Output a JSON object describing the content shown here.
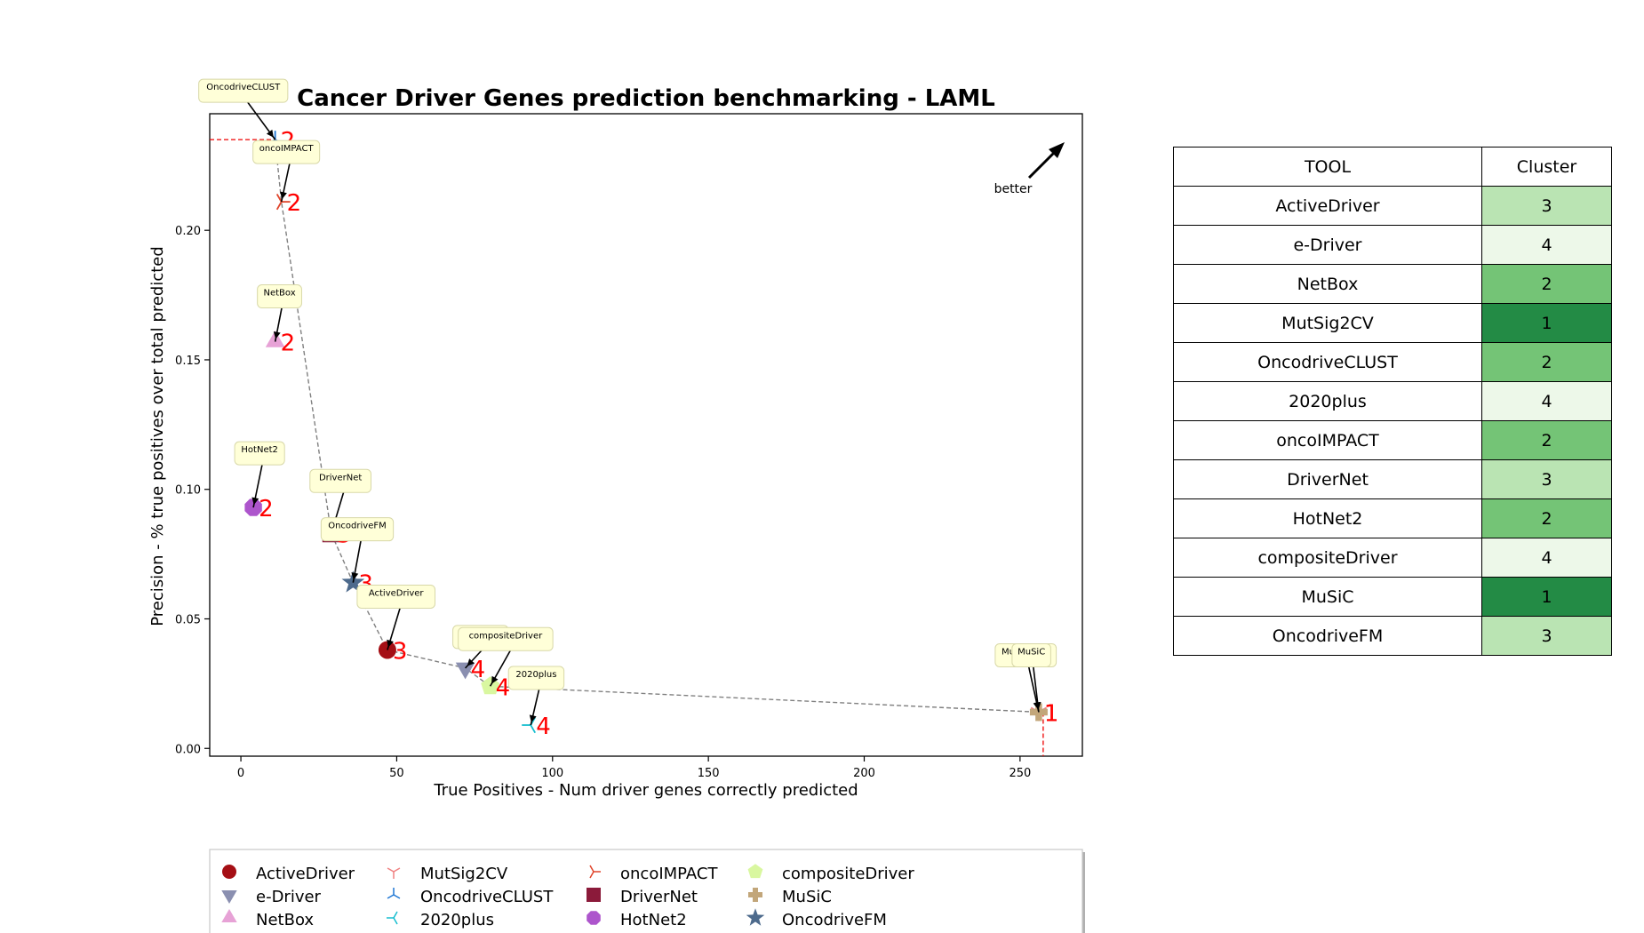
{
  "chart_data": {
    "type": "scatter",
    "title": "Cancer Driver Genes prediction benchmarking - LAML",
    "xlabel": "True Positives - Num driver genes correctly predicted",
    "ylabel": "Precision - % true positives over total predicted",
    "xlim": [
      -10,
      270
    ],
    "ylim": [
      -0.003,
      0.245
    ],
    "xticks": [
      0,
      50,
      100,
      150,
      200,
      250
    ],
    "xtick_labels": [
      "0",
      "50",
      "100",
      "150",
      "200",
      "250"
    ],
    "yticks": [
      0.0,
      0.05,
      0.1,
      0.15,
      0.2
    ],
    "ytick_labels": [
      "0.00",
      "0.05",
      "0.10",
      "0.15",
      "0.20"
    ],
    "grid": false,
    "better_label": "better",
    "series": [
      {
        "name": "ActiveDriver",
        "x": 47,
        "y": 0.038,
        "cluster": "3",
        "marker": "circle",
        "color": "#a50f15",
        "callout": "ActiveDriver"
      },
      {
        "name": "e-Driver",
        "x": 72,
        "y": 0.031,
        "cluster": "4",
        "marker": "triangle-down",
        "color": "#8a8fb0",
        "callout": "e-Driver"
      },
      {
        "name": "NetBox",
        "x": 11,
        "y": 0.157,
        "cluster": "2",
        "marker": "triangle-up",
        "color": "#e7a2d6",
        "callout": "NetBox"
      },
      {
        "name": "MutSig2CV",
        "x": 256,
        "y": 0.014,
        "cluster": "1",
        "marker": "tri-down",
        "color": "#f08080",
        "callout": "MutSig2CV"
      },
      {
        "name": "OncodriveCLUST",
        "x": 11,
        "y": 0.235,
        "cluster": "2",
        "marker": "tri-up",
        "color": "#1f77d4",
        "callout": "OncodriveCLUST"
      },
      {
        "name": "2020plus",
        "x": 93,
        "y": 0.009,
        "cluster": "4",
        "marker": "tri-left",
        "color": "#17becf",
        "callout": "2020plus"
      },
      {
        "name": "oncoIMPACT",
        "x": 13,
        "y": 0.211,
        "cluster": "2",
        "marker": "tri-right",
        "color": "#e0442a",
        "callout": "oncoIMPACT"
      },
      {
        "name": "DriverNet",
        "x": 29,
        "y": 0.083,
        "cluster": "3",
        "marker": "square",
        "color": "#8b1a3a",
        "callout": "DriverNet"
      },
      {
        "name": "HotNet2",
        "x": 4,
        "y": 0.093,
        "cluster": "2",
        "marker": "octagon",
        "color": "#ad55cc",
        "callout": "HotNet2"
      },
      {
        "name": "compositeDriver",
        "x": 80,
        "y": 0.024,
        "cluster": "4",
        "marker": "pentagon",
        "color": "#d9f7a0",
        "callout": "compositeDriver"
      },
      {
        "name": "MuSiC",
        "x": 256,
        "y": 0.014,
        "cluster": "1",
        "marker": "plus",
        "color": "#c2a67a",
        "callout": "MuSiC"
      },
      {
        "name": "OncodriveFM",
        "x": 36,
        "y": 0.064,
        "cluster": "3",
        "marker": "star",
        "color": "#4d6a8c",
        "callout": "OncodriveFM"
      }
    ],
    "pareto_front": [
      [
        11,
        0.235
      ],
      [
        13,
        0.211
      ],
      [
        29,
        0.083
      ],
      [
        36,
        0.064
      ],
      [
        47,
        0.038
      ],
      [
        72,
        0.031
      ],
      [
        80,
        0.024
      ],
      [
        256,
        0.014
      ]
    ]
  },
  "legend": {
    "entries": [
      "ActiveDriver",
      "e-Driver",
      "NetBox",
      "MutSig2CV",
      "OncodriveCLUST",
      "2020plus",
      "oncoIMPACT",
      "DriverNet",
      "HotNet2",
      "compositeDriver",
      "MuSiC",
      "OncodriveFM"
    ]
  },
  "table": {
    "headers": [
      "TOOL",
      "Cluster"
    ],
    "rows": [
      {
        "tool": "ActiveDriver",
        "cluster": "3"
      },
      {
        "tool": "e-Driver",
        "cluster": "4"
      },
      {
        "tool": "NetBox",
        "cluster": "2"
      },
      {
        "tool": "MutSig2CV",
        "cluster": "1"
      },
      {
        "tool": "OncodriveCLUST",
        "cluster": "2"
      },
      {
        "tool": "2020plus",
        "cluster": "4"
      },
      {
        "tool": "oncoIMPACT",
        "cluster": "2"
      },
      {
        "tool": "DriverNet",
        "cluster": "3"
      },
      {
        "tool": "HotNet2",
        "cluster": "2"
      },
      {
        "tool": "compositeDriver",
        "cluster": "4"
      },
      {
        "tool": "MuSiC",
        "cluster": "1"
      },
      {
        "tool": "OncodriveFM",
        "cluster": "3"
      }
    ],
    "cluster_colors": {
      "1": "#238b45",
      "2": "#74c476",
      "3": "#bae4b3",
      "4": "#edf8e9"
    }
  }
}
